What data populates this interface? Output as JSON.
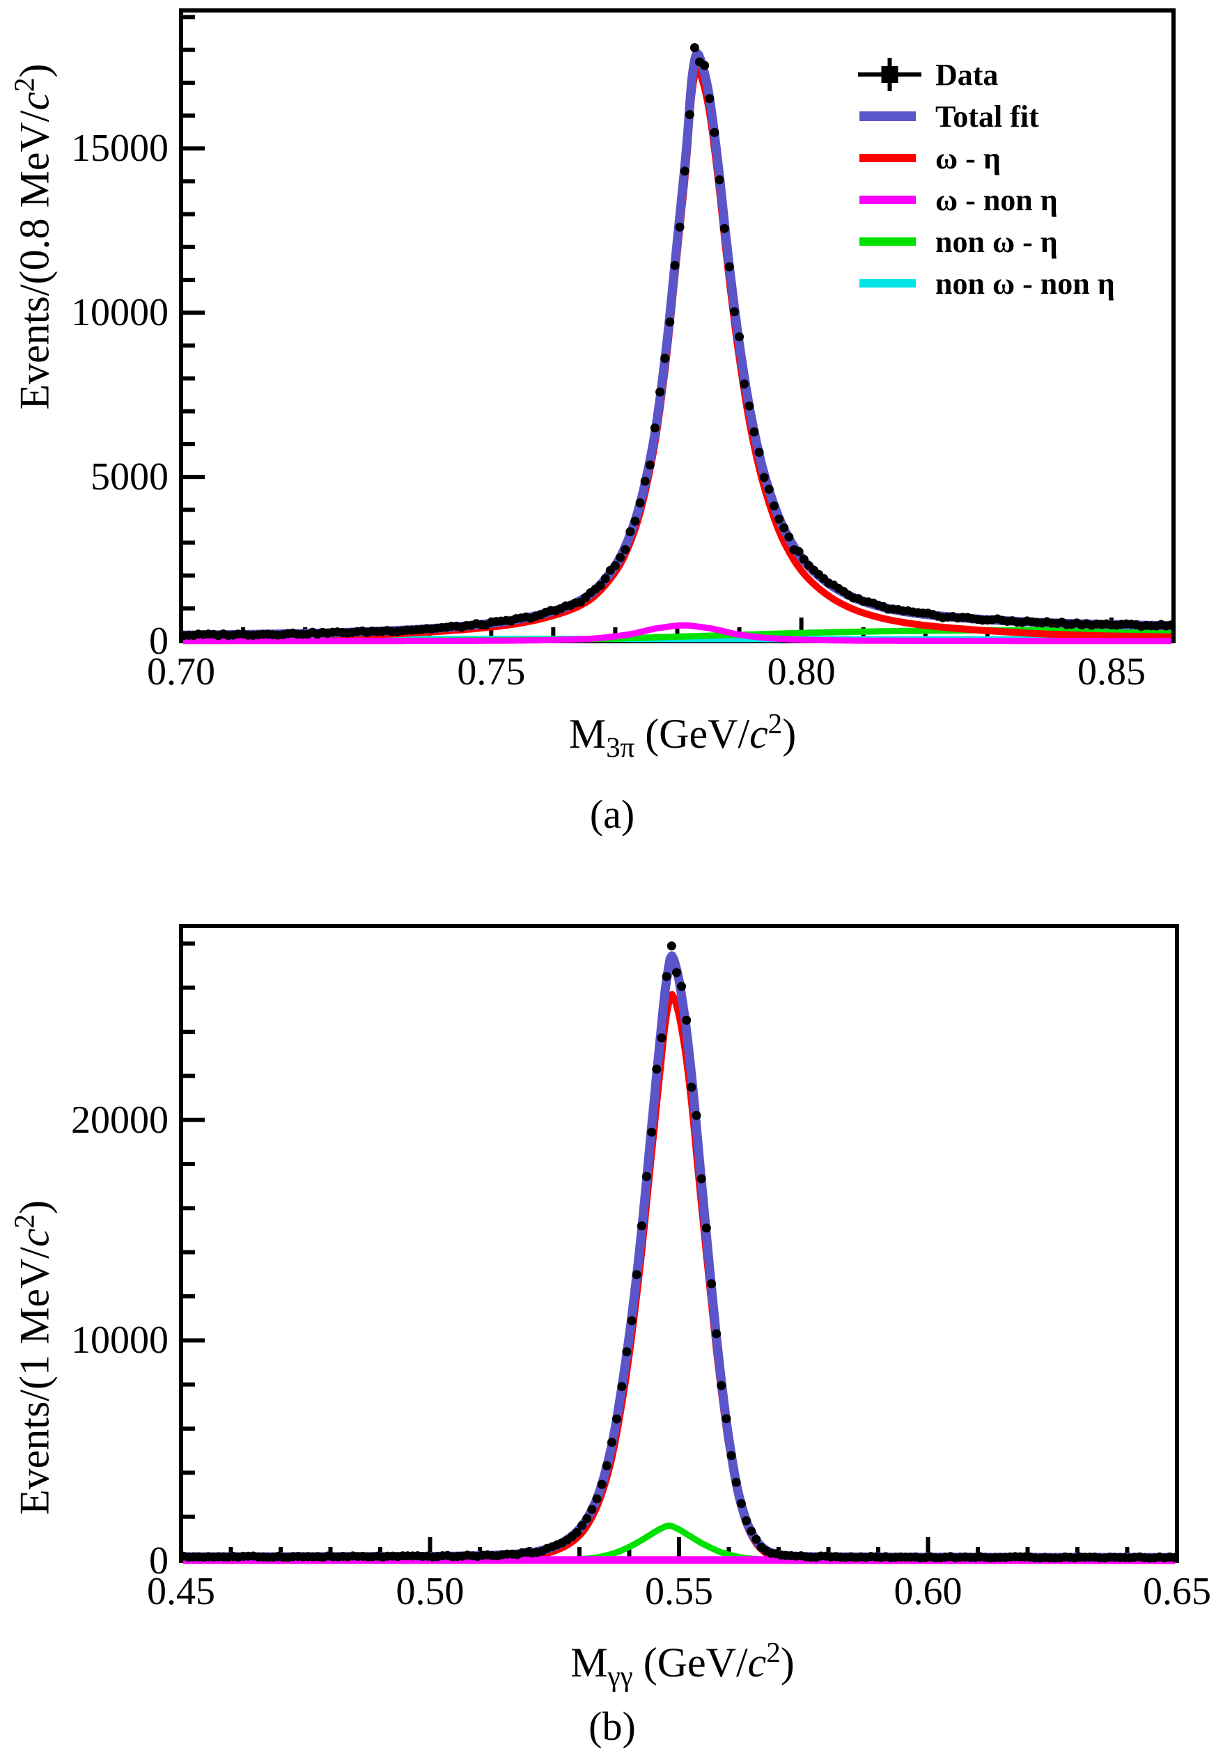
{
  "figure": {
    "captions": {
      "a": "(a)",
      "b": "(b)"
    }
  },
  "legend": {
    "entries": [
      {
        "id": "data",
        "label": "Data",
        "kind": "marker",
        "color": "#000000"
      },
      {
        "id": "total-fit",
        "label": "Total fit",
        "kind": "line",
        "color": "#5a55c8"
      },
      {
        "id": "omega-eta",
        "label": "ω - η",
        "kind": "line",
        "color": "#ff0000"
      },
      {
        "id": "omega-non-eta",
        "label": "ω - non η",
        "kind": "line",
        "color": "#ff00ff"
      },
      {
        "id": "non-omega-eta",
        "label": "non ω - η",
        "kind": "line",
        "color": "#00e100"
      },
      {
        "id": "non-omega-non-eta",
        "label": "non ω - non η",
        "kind": "line",
        "color": "#00e6e6"
      }
    ]
  },
  "chart_data": [
    {
      "id": "a",
      "type": "line",
      "caption": "(a)",
      "xlabel": {
        "pre": "M",
        "sub": "3π",
        "mid": " (GeV/",
        "it": "c",
        "sup": "2",
        "post": ")"
      },
      "ylabel": {
        "pre": "Events/(0.8 MeV/",
        "it": "c",
        "sup": "2",
        "post": ")"
      },
      "xlim": [
        0.7,
        0.86
      ],
      "ylim": [
        0,
        19200
      ],
      "x_major": {
        "values": [
          0.7,
          0.75,
          0.8,
          0.85
        ],
        "labels": [
          "0.70",
          "0.75",
          "0.80",
          "0.85"
        ]
      },
      "x_minor_step": 0.01,
      "y_major": {
        "values": [
          0,
          5000,
          10000,
          15000
        ],
        "labels": [
          "0",
          "5000",
          "10000",
          "15000"
        ]
      },
      "y_minor_step": 1000,
      "series": [
        {
          "name": "non-omega-non-eta",
          "color": "#00e6e6",
          "width": 9,
          "points": [
            [
              0.7,
              78
            ],
            [
              0.72,
              74
            ],
            [
              0.74,
              71
            ],
            [
              0.76,
              68
            ],
            [
              0.78,
              66
            ],
            [
              0.8,
              64
            ],
            [
              0.82,
              61
            ],
            [
              0.84,
              59
            ],
            [
              0.86,
              57
            ]
          ]
        },
        {
          "name": "non-omega-eta",
          "color": "#00e100",
          "width": 9,
          "points": [
            [
              0.7,
              8
            ],
            [
              0.73,
              14
            ],
            [
              0.75,
              28
            ],
            [
              0.76,
              45
            ],
            [
              0.77,
              82
            ],
            [
              0.78,
              138
            ],
            [
              0.79,
              196
            ],
            [
              0.8,
              250
            ],
            [
              0.81,
              292
            ],
            [
              0.82,
              318
            ],
            [
              0.83,
              332
            ],
            [
              0.84,
              336
            ],
            [
              0.85,
              333
            ],
            [
              0.86,
              328
            ]
          ]
        },
        {
          "name": "omega-eta",
          "color": "#ff0000",
          "width": 10,
          "points": [
            [
              0.7,
              95
            ],
            [
              0.71,
              115
            ],
            [
              0.72,
              145
            ],
            [
              0.73,
              195
            ],
            [
              0.74,
              280
            ],
            [
              0.75,
              430
            ],
            [
              0.755,
              560
            ],
            [
              0.76,
              780
            ],
            [
              0.765,
              1150
            ],
            [
              0.77,
              2100
            ],
            [
              0.773,
              3300
            ],
            [
              0.776,
              5600
            ],
            [
              0.778,
              8200
            ],
            [
              0.78,
              11800
            ],
            [
              0.7815,
              14600
            ],
            [
              0.7825,
              16900
            ],
            [
              0.7832,
              17450
            ],
            [
              0.784,
              17100
            ],
            [
              0.785,
              16300
            ],
            [
              0.7865,
              14200
            ],
            [
              0.788,
              11600
            ],
            [
              0.79,
              8600
            ],
            [
              0.792,
              6300
            ],
            [
              0.794,
              4700
            ],
            [
              0.797,
              3100
            ],
            [
              0.8,
              2150
            ],
            [
              0.803,
              1580
            ],
            [
              0.806,
              1190
            ],
            [
              0.81,
              860
            ],
            [
              0.815,
              620
            ],
            [
              0.82,
              480
            ],
            [
              0.83,
              320
            ],
            [
              0.84,
              215
            ],
            [
              0.85,
              160
            ],
            [
              0.86,
              130
            ]
          ]
        },
        {
          "name": "total-fit",
          "color": "#5a55c8",
          "width": 13,
          "points": [
            [
              0.7,
              185
            ],
            [
              0.71,
              205
            ],
            [
              0.72,
              235
            ],
            [
              0.73,
              290
            ],
            [
              0.74,
              380
            ],
            [
              0.75,
              545
            ],
            [
              0.755,
              690
            ],
            [
              0.76,
              915
            ],
            [
              0.765,
              1310
            ],
            [
              0.77,
              2300
            ],
            [
              0.773,
              3560
            ],
            [
              0.776,
              5900
            ],
            [
              0.778,
              8560
            ],
            [
              0.78,
              12200
            ],
            [
              0.7815,
              15050
            ],
            [
              0.7825,
              17350
            ],
            [
              0.7832,
              17900
            ],
            [
              0.784,
              17550
            ],
            [
              0.785,
              16750
            ],
            [
              0.7865,
              14650
            ],
            [
              0.788,
              12050
            ],
            [
              0.79,
              9050
            ],
            [
              0.792,
              6750
            ],
            [
              0.794,
              5100
            ],
            [
              0.797,
              3500
            ],
            [
              0.8,
              2550
            ],
            [
              0.803,
              1960
            ],
            [
              0.806,
              1560
            ],
            [
              0.81,
              1210
            ],
            [
              0.815,
              955
            ],
            [
              0.82,
              815
            ],
            [
              0.83,
              655
            ],
            [
              0.84,
              560
            ],
            [
              0.85,
              505
            ],
            [
              0.86,
              470
            ]
          ]
        },
        {
          "name": "omega-non-eta",
          "color": "#ff00ff",
          "width": 9,
          "points": [
            [
              0.7,
              5
            ],
            [
              0.74,
              8
            ],
            [
              0.755,
              22
            ],
            [
              0.765,
              65
            ],
            [
              0.772,
              200
            ],
            [
              0.777,
              400
            ],
            [
              0.781,
              480
            ],
            [
              0.785,
              400
            ],
            [
              0.79,
              200
            ],
            [
              0.795,
              90
            ],
            [
              0.8,
              45
            ],
            [
              0.81,
              18
            ],
            [
              0.83,
              8
            ],
            [
              0.86,
              5
            ]
          ]
        }
      ],
      "data_points": {
        "name": "data",
        "color": "#000000",
        "bin_width": 0.0008,
        "follows": "total-fit",
        "jitter_frac": 0.05,
        "jitter_abs": 55,
        "seed": 3,
        "dot_radius": 6.5
      }
    },
    {
      "id": "b",
      "type": "line",
      "caption": "(b)",
      "xlabel": {
        "pre": "M",
        "sub": "γγ",
        "mid": " (GeV/",
        "it": "c",
        "sup": "2",
        "post": ")"
      },
      "ylabel": {
        "pre": "Events/(1 MeV/",
        "it": "c",
        "sup": "2",
        "post": ")"
      },
      "xlim": [
        0.45,
        0.65
      ],
      "ylim": [
        0,
        28800
      ],
      "x_major": {
        "values": [
          0.45,
          0.5,
          0.55,
          0.6,
          0.65
        ],
        "labels": [
          "0.45",
          "0.50",
          "0.55",
          "0.60",
          "0.65"
        ]
      },
      "x_minor_step": 0.01,
      "y_major": {
        "values": [
          0,
          10000,
          20000
        ],
        "labels": [
          "0",
          "10000",
          "20000"
        ]
      },
      "y_minor_step": 2000,
      "series": [
        {
          "name": "non-omega-non-eta",
          "color": "#00e6e6",
          "width": 9,
          "points": [
            [
              0.45,
              30
            ],
            [
              0.55,
              30
            ],
            [
              0.65,
              30
            ]
          ]
        },
        {
          "name": "non-omega-eta",
          "color": "#00e100",
          "width": 9,
          "points": [
            [
              0.45,
              8
            ],
            [
              0.5,
              10
            ],
            [
              0.52,
              14
            ],
            [
              0.528,
              45
            ],
            [
              0.533,
              140
            ],
            [
              0.537,
              350
            ],
            [
              0.541,
              750
            ],
            [
              0.544,
              1150
            ],
            [
              0.5465,
              1480
            ],
            [
              0.548,
              1600
            ],
            [
              0.5495,
              1480
            ],
            [
              0.552,
              1150
            ],
            [
              0.555,
              750
            ],
            [
              0.559,
              350
            ],
            [
              0.563,
              140
            ],
            [
              0.568,
              45
            ],
            [
              0.572,
              14
            ],
            [
              0.58,
              10
            ],
            [
              0.6,
              8
            ],
            [
              0.65,
              8
            ]
          ]
        },
        {
          "name": "omega-eta",
          "color": "#ff0000",
          "width": 10,
          "points": [
            [
              0.45,
              25
            ],
            [
              0.48,
              30
            ],
            [
              0.5,
              45
            ],
            [
              0.51,
              70
            ],
            [
              0.515,
              110
            ],
            [
              0.52,
              200
            ],
            [
              0.524,
              380
            ],
            [
              0.527,
              650
            ],
            [
              0.53,
              1150
            ],
            [
              0.533,
              2200
            ],
            [
              0.536,
              4200
            ],
            [
              0.539,
              7800
            ],
            [
              0.542,
              13000
            ],
            [
              0.5445,
              18500
            ],
            [
              0.546,
              21800
            ],
            [
              0.5475,
              24800
            ],
            [
              0.5485,
              25700
            ],
            [
              0.5495,
              25200
            ],
            [
              0.551,
              23500
            ],
            [
              0.5525,
              20800
            ],
            [
              0.554,
              17300
            ],
            [
              0.556,
              12800
            ],
            [
              0.558,
              8600
            ],
            [
              0.56,
              5200
            ],
            [
              0.562,
              2800
            ],
            [
              0.564,
              1400
            ],
            [
              0.566,
              650
            ],
            [
              0.568,
              280
            ],
            [
              0.57,
              130
            ],
            [
              0.573,
              60
            ],
            [
              0.577,
              35
            ],
            [
              0.58,
              28
            ],
            [
              0.6,
              22
            ],
            [
              0.65,
              20
            ]
          ]
        },
        {
          "name": "total-fit",
          "color": "#5a55c8",
          "width": 13,
          "points": [
            [
              0.45,
              185
            ],
            [
              0.48,
              190
            ],
            [
              0.5,
              205
            ],
            [
              0.51,
              235
            ],
            [
              0.515,
              280
            ],
            [
              0.52,
              370
            ],
            [
              0.524,
              570
            ],
            [
              0.527,
              885
            ],
            [
              0.53,
              1450
            ],
            [
              0.533,
              2550
            ],
            [
              0.536,
              4750
            ],
            [
              0.539,
              8600
            ],
            [
              0.542,
              13950
            ],
            [
              0.5445,
              19700
            ],
            [
              0.546,
              23200
            ],
            [
              0.5475,
              26350
            ],
            [
              0.5485,
              27450
            ],
            [
              0.5495,
              26850
            ],
            [
              0.551,
              24900
            ],
            [
              0.5525,
              22050
            ],
            [
              0.554,
              18450
            ],
            [
              0.556,
              13600
            ],
            [
              0.558,
              9150
            ],
            [
              0.56,
              5550
            ],
            [
              0.562,
              3000
            ],
            [
              0.564,
              1550
            ],
            [
              0.566,
              780
            ],
            [
              0.568,
              420
            ],
            [
              0.57,
              285
            ],
            [
              0.573,
              215
            ],
            [
              0.577,
              190
            ],
            [
              0.58,
              185
            ],
            [
              0.6,
              165
            ],
            [
              0.65,
              155
            ]
          ]
        },
        {
          "name": "omega-non-eta",
          "color": "#ff00ff",
          "width": 11,
          "points": [
            [
              0.45,
              40
            ],
            [
              0.55,
              40
            ],
            [
              0.65,
              40
            ]
          ]
        }
      ],
      "data_points": {
        "name": "data",
        "color": "#000000",
        "bin_width": 0.001,
        "follows": "total-fit",
        "jitter_frac": 0.05,
        "jitter_abs": 60,
        "seed": 9,
        "dot_radius": 6.5
      }
    }
  ]
}
